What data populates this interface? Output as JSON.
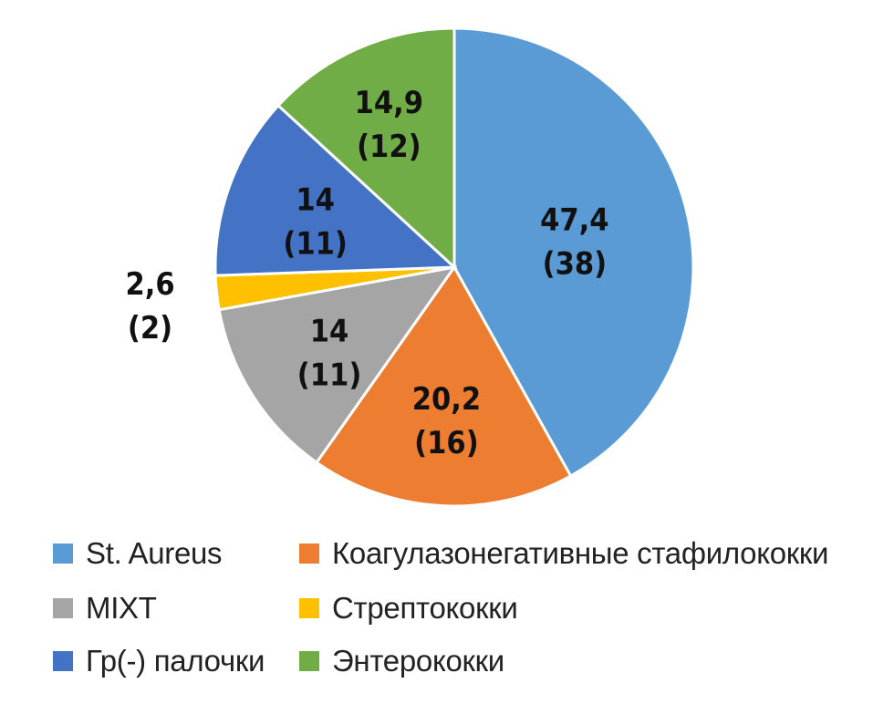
{
  "chart_data": {
    "type": "pie",
    "slices": [
      {
        "name": "St. Aureus",
        "value": 47.4,
        "count": 38,
        "color": "#5B9BD5",
        "value_label": "47,4",
        "count_label": "(38)"
      },
      {
        "name": "Коагулазонегативные стафилококки",
        "value": 20.2,
        "count": 16,
        "color": "#ED7D31",
        "value_label": "20,2",
        "count_label": "(16)"
      },
      {
        "name": "MIXT",
        "value": 14,
        "count": 11,
        "color": "#A5A5A5",
        "value_label": "14",
        "count_label": "(11)"
      },
      {
        "name": "Стрептококки",
        "value": 2.6,
        "count": 2,
        "color": "#FFC000",
        "value_label": "2,6",
        "count_label": "(2)"
      },
      {
        "name": "Гр(-) палочки",
        "value": 14,
        "count": 11,
        "color": "#4472C4",
        "value_label": "14",
        "count_label": "(11)"
      },
      {
        "name": "Энтерококки",
        "value": 14.9,
        "count": 12,
        "color": "#70AD47",
        "value_label": "14,9",
        "count_label": "(12)"
      }
    ],
    "legend_position": "bottom"
  },
  "legend": [
    {
      "label": "St. Aureus",
      "color": "#5B9BD5"
    },
    {
      "label": "Коагулазонегативные стафилококки",
      "color": "#ED7D31"
    },
    {
      "label": "MIXT",
      "color": "#A5A5A5"
    },
    {
      "label": "Стрептококки",
      "color": "#FFC000"
    },
    {
      "label": "Гр(-) палочки",
      "color": "#4472C4"
    },
    {
      "label": "Энтерококки",
      "color": "#70AD47"
    }
  ]
}
